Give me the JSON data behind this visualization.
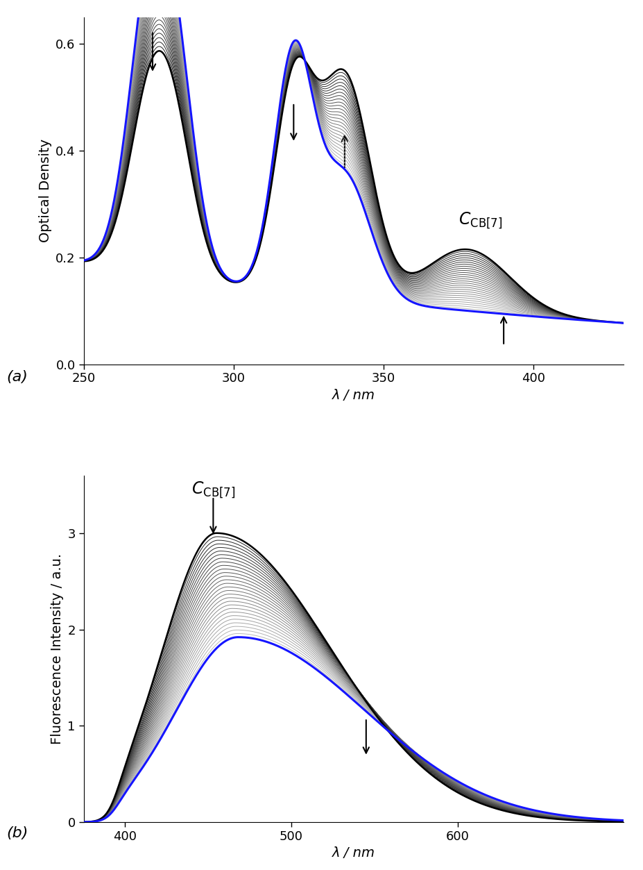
{
  "panel_a": {
    "xlabel": "λ / nm",
    "ylabel": "Optical Density",
    "xlim": [
      250,
      430
    ],
    "ylim": [
      0.0,
      0.65
    ],
    "xticks": [
      250,
      300,
      350,
      400
    ],
    "yticks": [
      0.0,
      0.2,
      0.4,
      0.6
    ],
    "n_curves": 30,
    "label": "(a)"
  },
  "panel_b": {
    "xlabel": "λ / nm",
    "ylabel": "Fluorescence Intensity / a.u.",
    "xlim": [
      375,
      700
    ],
    "ylim": [
      0.0,
      3.6
    ],
    "xticks": [
      400,
      500,
      600
    ],
    "yticks": [
      0,
      1,
      2,
      3
    ],
    "n_curves": 30,
    "label": "(b)"
  },
  "blue_color": "#1515FF",
  "black_color": "#000000",
  "bg_color": "#FFFFFF"
}
